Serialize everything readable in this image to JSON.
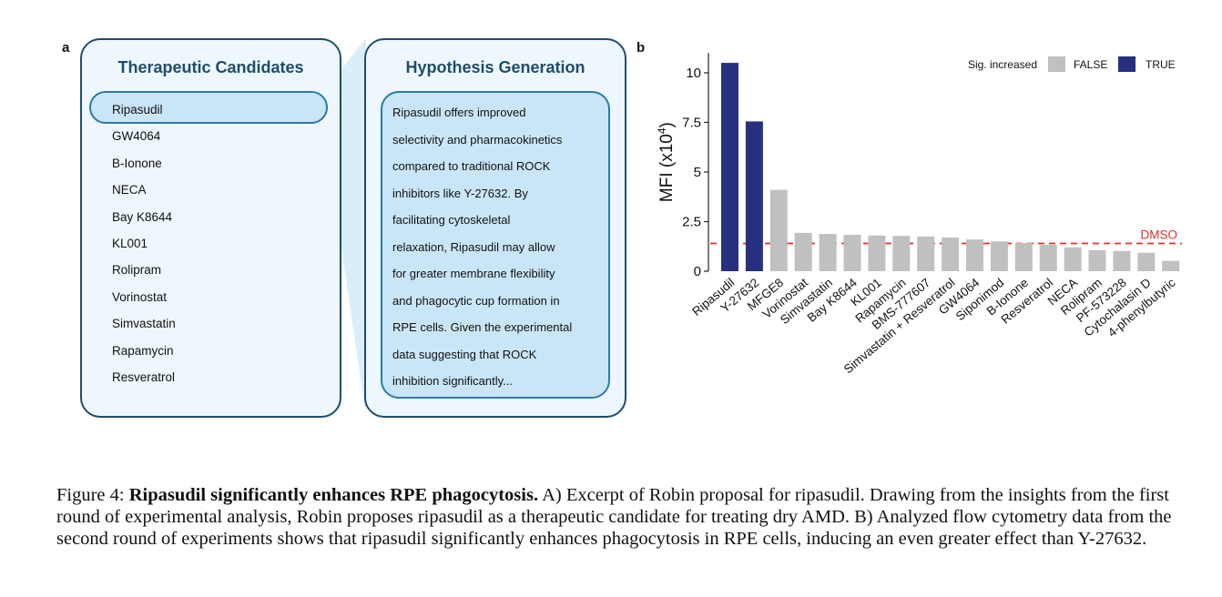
{
  "panel_a": {
    "letter": "a",
    "candidates_title": "Therapeutic Candidates",
    "candidates": [
      "Ripasudil",
      "GW4064",
      "B-Ionone",
      "NECA",
      "Bay K8644",
      "KL001",
      "Rolipram",
      "Vorinostat",
      "Simvastatin",
      "Rapamycin",
      "Resveratrol"
    ],
    "hypothesis_title": "Hypothesis Generation",
    "hypothesis_lines": [
      "Ripasudil offers improved",
      "selectivity and pharmacokinetics",
      "compared to traditional ROCK",
      "inhibitors like Y-27632. By",
      "facilitating cytoskeletal",
      "relaxation, Ripasudil may allow",
      "for greater membrane flexibility",
      "and phagocytic cup formation in",
      "RPE cells. Given the experimental",
      "data suggesting that ROCK",
      "inhibition significantly..."
    ],
    "colors": {
      "border": "#1e4d6b",
      "highlight": "#c9e6f8",
      "card_bg": "#eef7fd"
    }
  },
  "panel_b": {
    "letter": "b"
  },
  "chart_data": {
    "type": "bar",
    "ylabel": "MFI (x10",
    "ylabel_sup": "4",
    "ylabel_close": ")",
    "ylim": [
      0,
      11
    ],
    "yticks": [
      0,
      2.5,
      5,
      7.5,
      10
    ],
    "ytick_labels": [
      "0",
      "2.5",
      "5",
      "7.5",
      "10"
    ],
    "grid": false,
    "legend": {
      "title": "Sig. increased",
      "entries": [
        {
          "label": "FALSE",
          "color": "#c0c0c0"
        },
        {
          "label": "TRUE",
          "color": "#27307f"
        }
      ],
      "placement": "top-right"
    },
    "categories": [
      "Ripasudil",
      "Y-27632",
      "MFGE8",
      "Vorinostat",
      "Simvastatin",
      "Bay K8644",
      "KL001",
      "Rapamycin",
      "BMS-777607",
      "Simvastatin + Resveratrol",
      "GW4064",
      "Siponimod",
      "B-Ionone",
      "Resveratrol",
      "NECA",
      "Rolipram",
      "PF-573228",
      "Cytochalasin D",
      "4-phenylbutyric"
    ],
    "values": [
      10.5,
      7.55,
      4.1,
      1.93,
      1.88,
      1.83,
      1.8,
      1.78,
      1.75,
      1.7,
      1.6,
      1.5,
      1.42,
      1.33,
      1.2,
      1.06,
      1.02,
      0.93,
      0.52
    ],
    "significant": [
      true,
      true,
      false,
      false,
      false,
      false,
      false,
      false,
      false,
      false,
      false,
      false,
      false,
      false,
      false,
      false,
      false,
      false,
      false
    ],
    "reference_line": {
      "label": "DMSO",
      "value": 1.4,
      "color": "#e0312a"
    }
  },
  "caption": {
    "prefix": "Figure 4: ",
    "bold": "Ripasudil significantly enhances RPE phagocytosis.",
    "text": " A) Excerpt of Robin proposal for ripasudil. Drawing from the insights from the first round of experimental analysis, Robin proposes ripasudil as a therapeutic candidate for treating dry AMD. B) Analyzed flow cytometry data from the second round of experiments shows that ripasudil significantly enhances phagocytosis in RPE cells, inducing an even greater effect than Y-27632."
  }
}
